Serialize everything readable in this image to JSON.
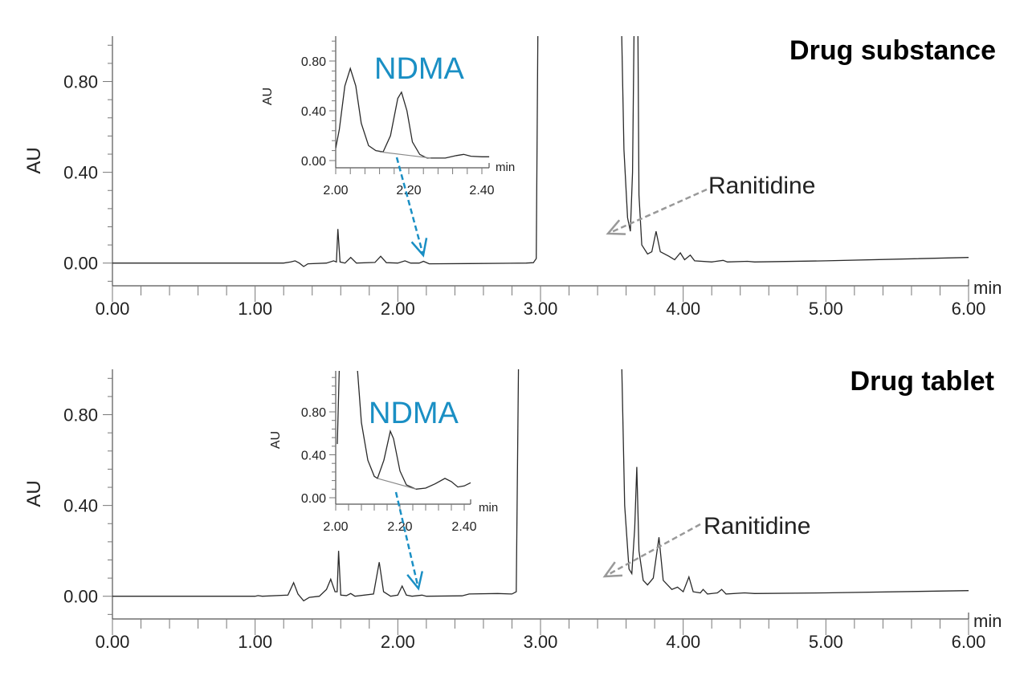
{
  "colors": {
    "trace": "#2a2a2a",
    "ndma": "#1a8fc4",
    "ranitidine_arrow": "#999999",
    "integration_baseline": "#8a8a8a"
  },
  "chart_data": [
    {
      "type": "line",
      "title": "Drug substance",
      "ylabel": "AU",
      "xlabel": "min",
      "xlim": [
        0,
        6
      ],
      "ylim": [
        -0.1,
        1.0
      ],
      "xticks": [
        "0.00",
        "1.00",
        "2.00",
        "3.00",
        "4.00",
        "5.00",
        "6.00"
      ],
      "yticks": [
        "0.00",
        "0.40",
        "0.80"
      ],
      "annotations": {
        "ranitidine": "Ranitidine",
        "ndma": "NDMA"
      },
      "series": [
        {
          "points": [
            [
              0,
              0
            ],
            [
              1.2,
              0
            ],
            [
              1.25,
              0.005
            ],
            [
              1.28,
              0.01
            ],
            [
              1.31,
              0
            ],
            [
              1.34,
              -0.015
            ],
            [
              1.37,
              -0.003
            ],
            [
              1.5,
              0
            ],
            [
              1.55,
              0.01
            ],
            [
              1.57,
              0.005
            ],
            [
              1.58,
              0.15
            ],
            [
              1.595,
              0.005
            ],
            [
              1.63,
              0
            ],
            [
              1.67,
              0.025
            ],
            [
              1.71,
              0
            ],
            [
              1.84,
              0.003
            ],
            [
              1.88,
              0.03
            ],
            [
              1.92,
              0.002
            ],
            [
              2.0,
              0
            ],
            [
              2.05,
              0.01
            ],
            [
              2.09,
              0
            ],
            [
              2.15,
              0
            ],
            [
              2.18,
              0.008
            ],
            [
              2.22,
              -0.003
            ],
            [
              2.5,
              -0.002
            ],
            [
              2.9,
              0
            ],
            [
              2.95,
              0.002
            ],
            [
              2.97,
              0.02
            ],
            [
              2.985,
              1.3
            ],
            [
              3.56,
              1.3
            ],
            [
              3.585,
              0.5
            ],
            [
              3.61,
              0.2
            ],
            [
              3.63,
              0.14
            ],
            [
              3.645,
              0.4
            ],
            [
              3.66,
              1.3
            ],
            [
              3.68,
              1.3
            ],
            [
              3.69,
              0.3
            ],
            [
              3.71,
              0.08
            ],
            [
              3.75,
              0.04
            ],
            [
              3.78,
              0.05
            ],
            [
              3.81,
              0.14
            ],
            [
              3.84,
              0.05
            ],
            [
              3.9,
              0.03
            ],
            [
              3.94,
              0.015
            ],
            [
              3.98,
              0.045
            ],
            [
              4.01,
              0.015
            ],
            [
              4.05,
              0.035
            ],
            [
              4.08,
              0.01
            ],
            [
              4.2,
              0.005
            ],
            [
              4.28,
              0.012
            ],
            [
              4.31,
              0.005
            ],
            [
              4.45,
              0.008
            ],
            [
              4.5,
              0.005
            ],
            [
              5,
              0.01
            ],
            [
              6,
              0.025
            ]
          ]
        }
      ],
      "inset": {
        "ylabel": "AU",
        "xlabel": "min",
        "xlim": [
          2.0,
          2.42
        ],
        "ylim": [
          -0.05,
          1.0
        ],
        "xticks": [
          "2.00",
          "2.20",
          "2.40"
        ],
        "yticks": [
          "0.00",
          "0.40",
          "0.80"
        ],
        "series": [
          {
            "points": [
              [
                2.0,
                0.1
              ],
              [
                2.01,
                0.25
              ],
              [
                2.025,
                0.6
              ],
              [
                2.04,
                0.74
              ],
              [
                2.055,
                0.6
              ],
              [
                2.07,
                0.3
              ],
              [
                2.09,
                0.12
              ],
              [
                2.11,
                0.08
              ],
              [
                2.13,
                0.07
              ],
              [
                2.15,
                0.2
              ],
              [
                2.17,
                0.5
              ],
              [
                2.18,
                0.55
              ],
              [
                2.195,
                0.4
              ],
              [
                2.21,
                0.15
              ],
              [
                2.23,
                0.05
              ],
              [
                2.25,
                0.02
              ],
              [
                2.3,
                0.02
              ],
              [
                2.33,
                0.04
              ],
              [
                2.35,
                0.05
              ],
              [
                2.37,
                0.035
              ],
              [
                2.4,
                0.03
              ],
              [
                2.42,
                0.03
              ]
            ]
          }
        ],
        "baseline": [
          [
            2.12,
            0.07
          ],
          [
            2.26,
            0.02
          ]
        ]
      }
    },
    {
      "type": "line",
      "title": "Drug tablet",
      "ylabel": "AU",
      "xlabel": "min",
      "xlim": [
        0,
        6
      ],
      "ylim": [
        -0.1,
        1.0
      ],
      "xticks": [
        "0.00",
        "1.00",
        "2.00",
        "3.00",
        "4.00",
        "5.00",
        "6.00"
      ],
      "yticks": [
        "0.00",
        "0.40",
        "0.80"
      ],
      "annotations": {
        "ranitidine": "Ranitidine",
        "ndma": "NDMA"
      },
      "series": [
        {
          "points": [
            [
              0,
              0
            ],
            [
              1.0,
              0
            ],
            [
              1.02,
              0.003
            ],
            [
              1.05,
              0
            ],
            [
              1.23,
              0.005
            ],
            [
              1.27,
              0.06
            ],
            [
              1.3,
              0.01
            ],
            [
              1.34,
              -0.02
            ],
            [
              1.38,
              -0.005
            ],
            [
              1.45,
              0
            ],
            [
              1.5,
              0.03
            ],
            [
              1.53,
              0.075
            ],
            [
              1.56,
              0.02
            ],
            [
              1.575,
              0.02
            ],
            [
              1.585,
              0.2
            ],
            [
              1.6,
              0.005
            ],
            [
              1.64,
              0.003
            ],
            [
              1.67,
              0.012
            ],
            [
              1.7,
              0
            ],
            [
              1.83,
              0.01
            ],
            [
              1.87,
              0.15
            ],
            [
              1.9,
              0.02
            ],
            [
              1.95,
              0
            ],
            [
              2.0,
              0.005
            ],
            [
              2.03,
              0.045
            ],
            [
              2.06,
              0.005
            ],
            [
              2.1,
              0
            ],
            [
              2.17,
              0.005
            ],
            [
              2.2,
              0
            ],
            [
              2.45,
              0.002
            ],
            [
              2.5,
              0.01
            ],
            [
              2.7,
              0.012
            ],
            [
              2.8,
              0.01
            ],
            [
              2.83,
              0.02
            ],
            [
              2.85,
              1.3
            ],
            [
              3.56,
              1.3
            ],
            [
              3.59,
              0.4
            ],
            [
              3.62,
              0.12
            ],
            [
              3.64,
              0.1
            ],
            [
              3.66,
              0.3
            ],
            [
              3.675,
              0.57
            ],
            [
              3.69,
              0.2
            ],
            [
              3.72,
              0.07
            ],
            [
              3.75,
              0.05
            ],
            [
              3.79,
              0.08
            ],
            [
              3.83,
              0.26
            ],
            [
              3.86,
              0.07
            ],
            [
              3.92,
              0.03
            ],
            [
              3.96,
              0.04
            ],
            [
              4.0,
              0.02
            ],
            [
              4.04,
              0.085
            ],
            [
              4.07,
              0.02
            ],
            [
              4.12,
              0.015
            ],
            [
              4.14,
              0.03
            ],
            [
              4.17,
              0.01
            ],
            [
              4.24,
              0.015
            ],
            [
              4.27,
              0.03
            ],
            [
              4.3,
              0.01
            ],
            [
              4.43,
              0.015
            ],
            [
              4.5,
              0.012
            ],
            [
              5,
              0.015
            ],
            [
              6,
              0.025
            ]
          ]
        }
      ],
      "inset": {
        "ylabel": "AU",
        "xlabel": "min",
        "xlim": [
          2.0,
          2.42
        ],
        "ylim": [
          -0.05,
          1.15
        ],
        "xticks": [
          "2.00",
          "2.20",
          "2.40"
        ],
        "yticks": [
          "0.00",
          "0.40",
          "0.80"
        ],
        "series": [
          {
            "points": [
              [
                2.005,
                0.5
              ],
              [
                2.012,
                1.3
              ],
              [
                2.065,
                1.3
              ],
              [
                2.08,
                0.7
              ],
              [
                2.1,
                0.35
              ],
              [
                2.12,
                0.2
              ],
              [
                2.13,
                0.18
              ],
              [
                2.15,
                0.35
              ],
              [
                2.17,
                0.62
              ],
              [
                2.18,
                0.55
              ],
              [
                2.2,
                0.25
              ],
              [
                2.22,
                0.12
              ],
              [
                2.25,
                0.08
              ],
              [
                2.28,
                0.09
              ],
              [
                2.31,
                0.13
              ],
              [
                2.34,
                0.18
              ],
              [
                2.36,
                0.15
              ],
              [
                2.38,
                0.1
              ],
              [
                2.4,
                0.11
              ],
              [
                2.42,
                0.14
              ]
            ]
          }
        ],
        "baseline": [
          [
            2.13,
            0.18
          ],
          [
            2.25,
            0.08
          ]
        ]
      }
    }
  ]
}
